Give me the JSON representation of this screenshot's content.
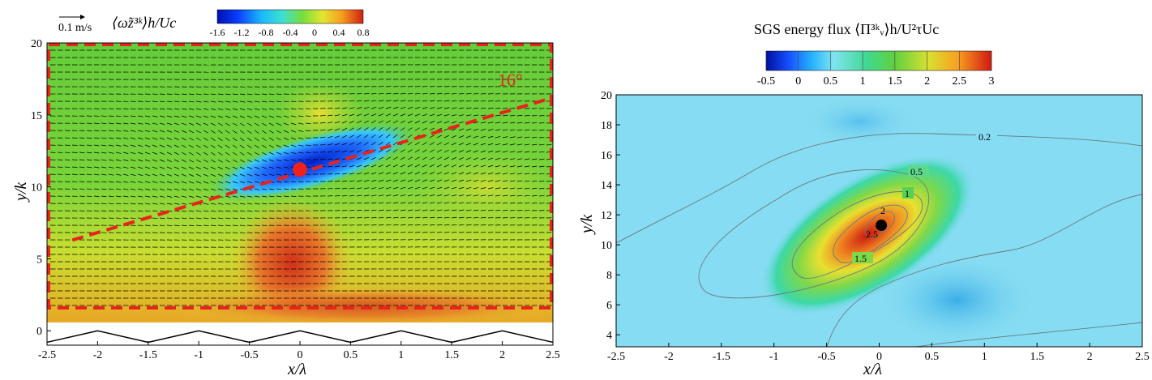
{
  "chart_data": [
    {
      "type": "heatmap",
      "subtype": "contour with velocity vectors",
      "title": "⟨ω̃z³ᵏ⟩h/Uc",
      "xlabel": "x/λ",
      "ylabel": "y/k",
      "xlim": [
        -2.5,
        2.5
      ],
      "ylim": [
        -1,
        20
      ],
      "xticks": [
        "-2.5",
        "-2",
        "-1.5",
        "-1",
        "-0.5",
        "0",
        "0.5",
        "1",
        "1.5",
        "2",
        "2.5"
      ],
      "yticks": [
        "0",
        "5",
        "10",
        "15",
        "20"
      ],
      "colorbar": {
        "range": [
          -1.6,
          0.8
        ],
        "ticks": [
          "-1.6",
          "-1.2",
          "-0.8",
          "-0.4",
          "0",
          "0.4",
          "0.8"
        ],
        "placement": "top"
      },
      "vector_reference": "0.1 m/s",
      "annotations": {
        "angle_label": "16°",
        "marker": {
          "x": 0,
          "y": 11.2
        },
        "dashed_line": {
          "x": [
            -2.25,
            2.5
          ],
          "y": [
            6.3,
            16.2
          ]
        },
        "dashed_box": {
          "x": [
            -2.5,
            2.5
          ],
          "y": [
            1.5,
            20
          ]
        }
      },
      "wall_profile": {
        "x": [
          -2.5,
          -2,
          -1.5,
          -1,
          -0.5,
          0,
          0.5,
          1,
          1.5,
          2,
          2.5
        ],
        "y": [
          -0.8,
          0,
          -0.8,
          0,
          -0.8,
          0,
          -0.8,
          0,
          -0.8,
          0,
          -0.8
        ]
      },
      "colors": {
        "blue": "#0a2bd6",
        "green": "#6ad13a",
        "yellow": "#e9e333",
        "red": "#d9301b"
      }
    },
    {
      "type": "heatmap",
      "subtype": "contour",
      "title": "SGS energy flux ⟨Π³ᵏᵥ⟩h/U²τUc",
      "xlabel": "x/λ",
      "ylabel": "y/k",
      "xlim": [
        -2.5,
        2.5
      ],
      "ylim": [
        3.2,
        20
      ],
      "xticks": [
        "-2.5",
        "-2",
        "-1.5",
        "-1",
        "-0.5",
        "0",
        "0.5",
        "1",
        "1.5",
        "2",
        "2.5"
      ],
      "yticks": [
        "4",
        "6",
        "8",
        "10",
        "12",
        "14",
        "16",
        "18",
        "20"
      ],
      "colorbar": {
        "range": [
          -0.5,
          3
        ],
        "ticks": [
          "-0.5",
          "0",
          "0.5",
          "1",
          "1.5",
          "2",
          "2.5",
          "3"
        ],
        "placement": "top"
      },
      "contour_labels": [
        "0.2",
        "0.5",
        "1",
        "1.5",
        "2",
        "2.5"
      ],
      "marker": {
        "x": 0.02,
        "y": 11.3
      },
      "colors": {
        "background": "#7fd9f0",
        "peak": "#d0221a"
      }
    }
  ]
}
